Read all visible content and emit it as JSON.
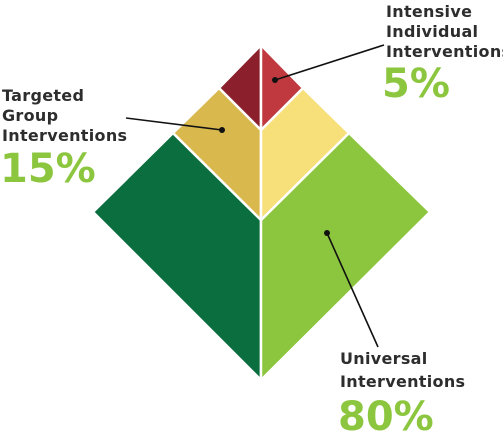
{
  "tiers": [
    {
      "label": [
        "Intensive",
        "Individual",
        "Interventions"
      ],
      "percent": "5%"
    },
    {
      "label": [
        "Targeted",
        "Group",
        "Interventions"
      ],
      "percent": "15%"
    },
    {
      "label": [
        "Universal",
        "Interventions"
      ],
      "percent": "80%"
    }
  ]
}
